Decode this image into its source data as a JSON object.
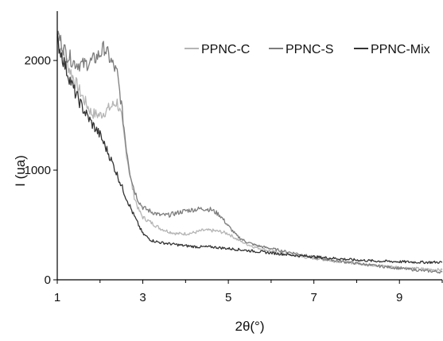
{
  "chart_data": {
    "type": "line",
    "xlabel": "2θ(°)",
    "ylabel": "I (ua)",
    "xlim": [
      1,
      10
    ],
    "ylim": [
      0,
      2450
    ],
    "x_ticks": [
      "1",
      "3",
      "5",
      "7",
      "9"
    ],
    "y_ticks": [
      "0",
      "1000",
      "2000"
    ],
    "grid": false,
    "legend_position": "top-right",
    "series": [
      {
        "name": "PPNC-C",
        "color": "#b5b5b5",
        "x": [
          1.0,
          1.2,
          1.4,
          1.6,
          1.8,
          2.0,
          2.2,
          2.4,
          2.5,
          2.6,
          2.7,
          2.8,
          2.9,
          3.0,
          3.2,
          3.4,
          3.6,
          3.8,
          4.0,
          4.2,
          4.4,
          4.6,
          4.8,
          5.0,
          5.2,
          5.4,
          5.6,
          5.8,
          6.0,
          6.3,
          6.6,
          7.0,
          7.5,
          8.0,
          8.5,
          9.0,
          9.5,
          10.0
        ],
        "y": [
          2200,
          2000,
          1820,
          1660,
          1520,
          1500,
          1560,
          1620,
          1480,
          1200,
          950,
          760,
          640,
          570,
          520,
          470,
          440,
          420,
          420,
          430,
          450,
          450,
          440,
          420,
          370,
          330,
          300,
          280,
          260,
          240,
          215,
          195,
          170,
          150,
          130,
          115,
          100,
          90
        ]
      },
      {
        "name": "PPNC-S",
        "color": "#7d7d7d",
        "x": [
          1.0,
          1.2,
          1.4,
          1.6,
          1.8,
          2.0,
          2.1,
          2.2,
          2.4,
          2.5,
          2.6,
          2.7,
          2.8,
          2.9,
          3.0,
          3.2,
          3.4,
          3.6,
          3.8,
          4.0,
          4.2,
          4.4,
          4.6,
          4.8,
          5.0,
          5.2,
          5.4,
          5.6,
          5.8,
          6.0,
          6.3,
          6.6,
          7.0,
          7.5,
          8.0,
          8.5,
          9.0,
          9.5,
          10.0
        ],
        "y": [
          2250,
          2070,
          1980,
          1960,
          1990,
          2060,
          2120,
          2040,
          1880,
          1600,
          1250,
          980,
          820,
          720,
          660,
          620,
          590,
          590,
          610,
          630,
          640,
          650,
          640,
          590,
          490,
          400,
          350,
          320,
          300,
          285,
          260,
          240,
          205,
          175,
          150,
          125,
          105,
          85,
          70
        ]
      },
      {
        "name": "PPNC-Mix",
        "color": "#333333",
        "x": [
          1.0,
          1.2,
          1.4,
          1.6,
          1.8,
          2.0,
          2.2,
          2.4,
          2.6,
          2.8,
          3.0,
          3.2,
          3.4,
          3.6,
          3.8,
          4.0,
          4.3,
          4.6,
          5.0,
          5.5,
          6.0,
          6.5,
          7.0,
          7.5,
          8.0,
          8.5,
          9.0,
          9.5,
          10.0
        ],
        "y": [
          2180,
          1930,
          1720,
          1560,
          1430,
          1320,
          1150,
          960,
          760,
          580,
          420,
          360,
          340,
          330,
          320,
          310,
          300,
          300,
          285,
          265,
          245,
          225,
          210,
          195,
          180,
          170,
          165,
          160,
          160
        ]
      }
    ]
  }
}
